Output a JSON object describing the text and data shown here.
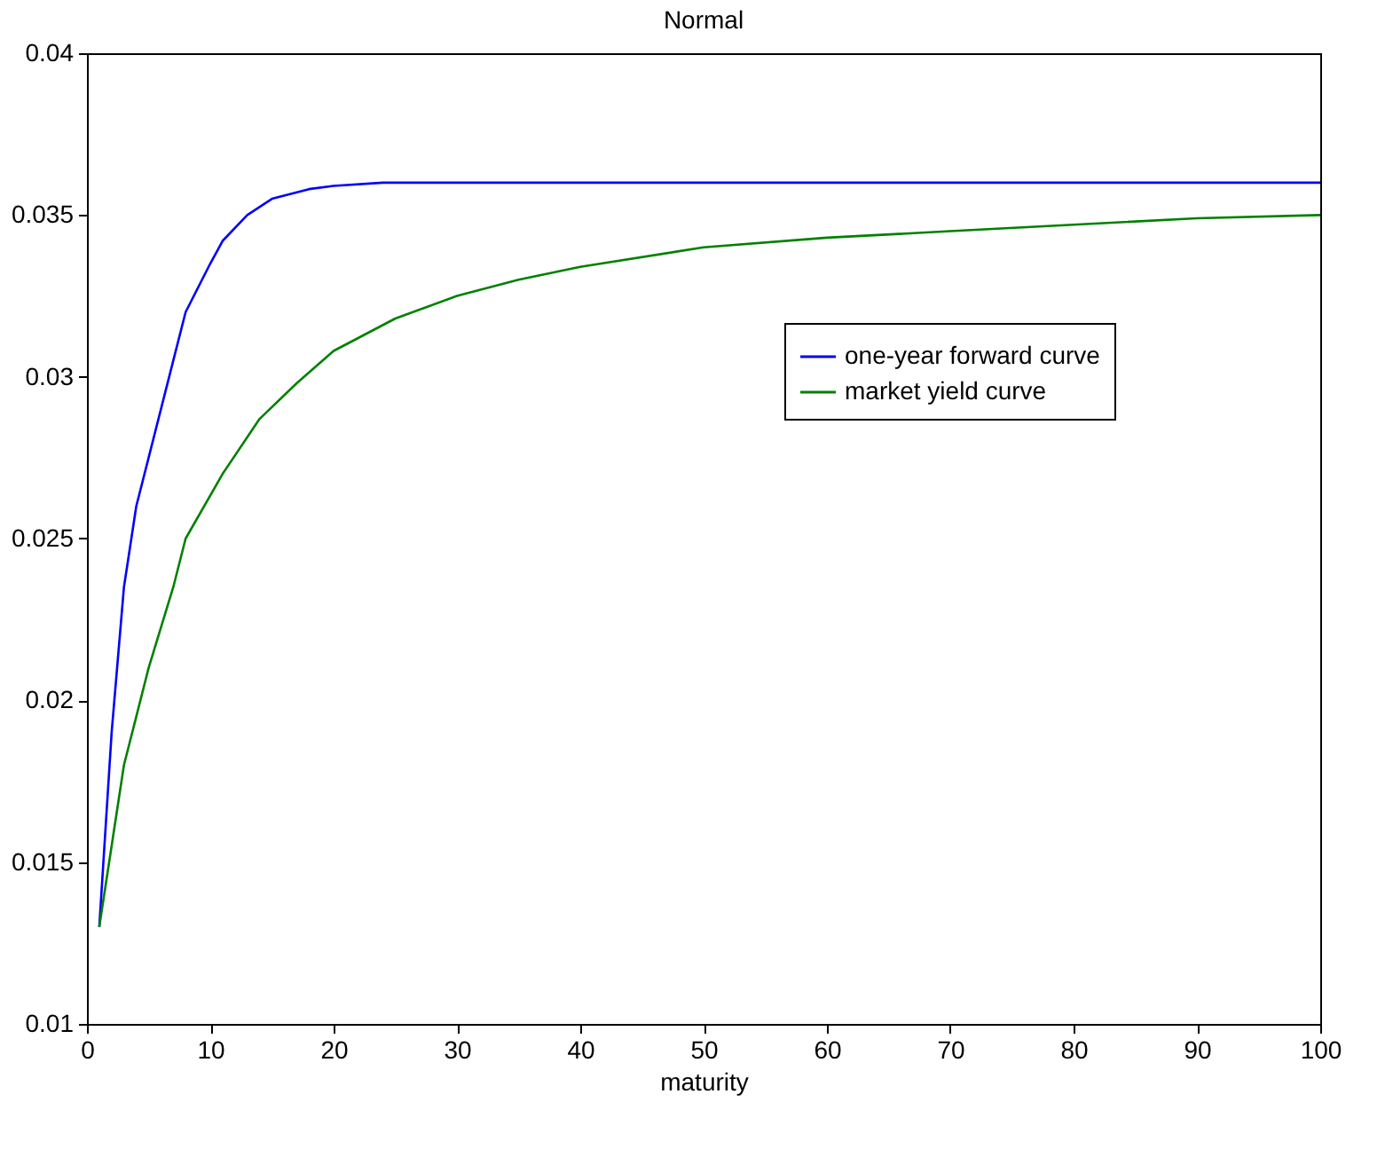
{
  "chart_data": {
    "type": "line",
    "title": "Normal",
    "xlabel": "maturity",
    "xlim": [
      0,
      100
    ],
    "xticks": [
      0,
      10,
      20,
      30,
      40,
      50,
      60,
      70,
      80,
      90,
      100
    ],
    "ylim": [
      0.01,
      0.04
    ],
    "yticks": [
      0.01,
      0.015,
      0.02,
      0.025,
      0.03,
      0.035,
      0.04
    ],
    "grid": false,
    "legend": "top right",
    "line_style": "solid",
    "marker": "none",
    "series": [
      {
        "name": "one-year forward curve",
        "color": "#0000ff",
        "x": [
          1,
          2,
          3,
          4,
          5,
          6,
          7,
          8,
          10,
          11,
          13,
          15,
          18,
          20,
          24,
          100
        ],
        "values": [
          0.013,
          0.019,
          0.0235,
          0.026,
          0.0275,
          0.029,
          0.0305,
          0.032,
          0.0335,
          0.0342,
          0.035,
          0.0355,
          0.0358,
          0.0359,
          0.036,
          0.036
        ]
      },
      {
        "name": "market yield curve",
        "color": "#008000",
        "x": [
          1,
          2,
          3,
          4,
          5,
          7,
          8,
          11,
          14,
          17,
          20,
          25,
          30,
          35,
          40,
          50,
          60,
          70,
          80,
          90,
          100
        ],
        "values": [
          0.013,
          0.0155,
          0.018,
          0.0195,
          0.021,
          0.0235,
          0.025,
          0.027,
          0.0287,
          0.0298,
          0.0308,
          0.0318,
          0.0325,
          0.033,
          0.0334,
          0.034,
          0.0343,
          0.0345,
          0.0347,
          0.0349,
          0.035
        ]
      }
    ]
  }
}
